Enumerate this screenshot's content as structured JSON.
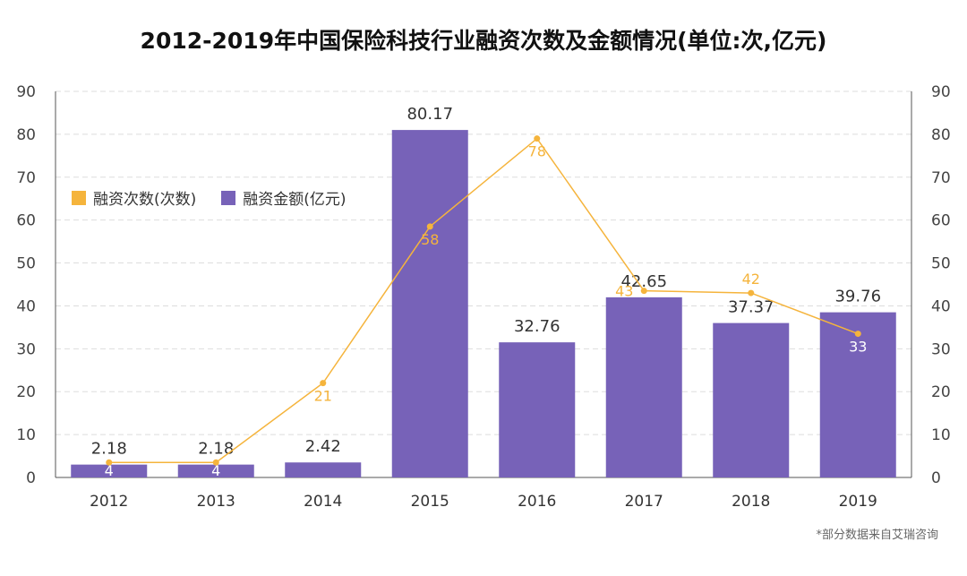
{
  "title": "2012-2019年中国保险科技行业融资次数及金额情况(单位:次,亿元)",
  "note": "*部分数据来自艾瑞咨询",
  "colors": {
    "bar": "#7762b8",
    "line": "#f5b43c",
    "grid": "#dddddd",
    "axis": "#555555"
  },
  "legend": [
    {
      "label": "融资次数(次数)",
      "color": "#f5b43c"
    },
    {
      "label": "融资金额(亿元)",
      "color": "#7762b8"
    }
  ],
  "chart_data": {
    "type": "bar",
    "title": "2012-2019年中国保险科技行业融资次数及金额情况(单位:次,亿元)",
    "categories": [
      "2012",
      "2013",
      "2014",
      "2015",
      "2016",
      "2017",
      "2018",
      "2019"
    ],
    "series": [
      {
        "name": "融资金额(亿元)",
        "type": "bar",
        "values": [
          2.18,
          2.18,
          2.42,
          80.17,
          32.76,
          42.65,
          37.37,
          39.76
        ],
        "labels": [
          "2.18",
          "2.18",
          "2.42",
          "80.17",
          "32.76",
          "42.65",
          "37.37",
          "39.76"
        ],
        "plot_values": [
          3,
          3,
          3.5,
          81,
          31.5,
          42,
          36,
          38.5
        ]
      },
      {
        "name": "融资次数(次数)",
        "type": "line",
        "values": [
          4,
          4,
          21,
          58,
          78,
          43,
          42,
          33
        ],
        "plot_values": [
          3.5,
          3.5,
          22,
          58.5,
          79,
          43.5,
          43,
          33.5
        ]
      }
    ],
    "ylim": [
      0,
      90
    ],
    "yticks": [
      "0",
      "10",
      "20",
      "30",
      "40",
      "50",
      "60",
      "70",
      "80",
      "90"
    ],
    "y2lim": [
      0,
      90
    ],
    "y2ticks": [
      "0",
      "10",
      "20",
      "30",
      "40",
      "50",
      "60",
      "70",
      "80",
      "90"
    ],
    "grid": true,
    "legend_position": "upper-left"
  }
}
